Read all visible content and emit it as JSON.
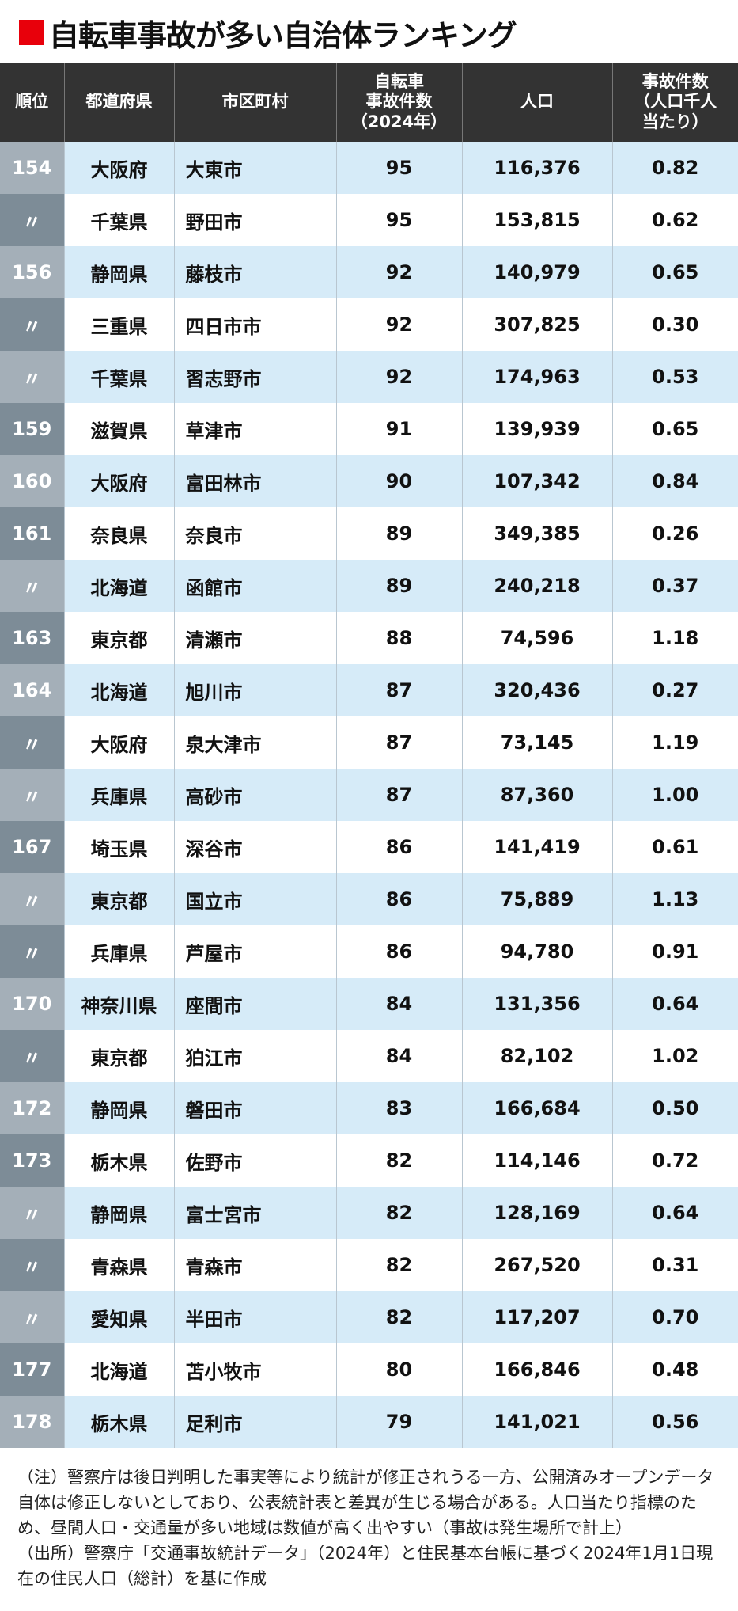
{
  "title": "自転車事故が多い自治体ランキング",
  "colors": {
    "accent": "#e8000b",
    "header": "#333333",
    "row_alt": "#d6ebf8"
  },
  "headers": [
    "順位",
    "都道府県",
    "市区町村",
    "自転車\n事故件数\n（2024年）",
    "人口",
    "事故件数\n（人口千人\n当たり）"
  ],
  "rows": [
    [
      "154",
      "大阪府",
      "大東市",
      "95",
      "116,376",
      "0.82"
    ],
    [
      "〃",
      "千葉県",
      "野田市",
      "95",
      "153,815",
      "0.62"
    ],
    [
      "156",
      "静岡県",
      "藤枝市",
      "92",
      "140,979",
      "0.65"
    ],
    [
      "〃",
      "三重県",
      "四日市市",
      "92",
      "307,825",
      "0.30"
    ],
    [
      "〃",
      "千葉県",
      "習志野市",
      "92",
      "174,963",
      "0.53"
    ],
    [
      "159",
      "滋賀県",
      "草津市",
      "91",
      "139,939",
      "0.65"
    ],
    [
      "160",
      "大阪府",
      "富田林市",
      "90",
      "107,342",
      "0.84"
    ],
    [
      "161",
      "奈良県",
      "奈良市",
      "89",
      "349,385",
      "0.26"
    ],
    [
      "〃",
      "北海道",
      "函館市",
      "89",
      "240,218",
      "0.37"
    ],
    [
      "163",
      "東京都",
      "清瀬市",
      "88",
      "74,596",
      "1.18"
    ],
    [
      "164",
      "北海道",
      "旭川市",
      "87",
      "320,436",
      "0.27"
    ],
    [
      "〃",
      "大阪府",
      "泉大津市",
      "87",
      "73,145",
      "1.19"
    ],
    [
      "〃",
      "兵庫県",
      "高砂市",
      "87",
      "87,360",
      "1.00"
    ],
    [
      "167",
      "埼玉県",
      "深谷市",
      "86",
      "141,419",
      "0.61"
    ],
    [
      "〃",
      "東京都",
      "国立市",
      "86",
      "75,889",
      "1.13"
    ],
    [
      "〃",
      "兵庫県",
      "芦屋市",
      "86",
      "94,780",
      "0.91"
    ],
    [
      "170",
      "神奈川県",
      "座間市",
      "84",
      "131,356",
      "0.64"
    ],
    [
      "〃",
      "東京都",
      "狛江市",
      "84",
      "82,102",
      "1.02"
    ],
    [
      "172",
      "静岡県",
      "磐田市",
      "83",
      "166,684",
      "0.50"
    ],
    [
      "173",
      "栃木県",
      "佐野市",
      "82",
      "114,146",
      "0.72"
    ],
    [
      "〃",
      "静岡県",
      "富士宮市",
      "82",
      "128,169",
      "0.64"
    ],
    [
      "〃",
      "青森県",
      "青森市",
      "82",
      "267,520",
      "0.31"
    ],
    [
      "〃",
      "愛知県",
      "半田市",
      "82",
      "117,207",
      "0.70"
    ],
    [
      "177",
      "北海道",
      "苫小牧市",
      "80",
      "166,846",
      "0.48"
    ],
    [
      "178",
      "栃木県",
      "足利市",
      "79",
      "141,021",
      "0.56"
    ]
  ],
  "notes": [
    "（注）警察庁は後日判明した事実等により統計が修正されうる一方、公開済みオープンデータ自体は修正しないとしており、公表統計表と差異が生じる場合がある。人口当たり指標のため、昼間人口・交通量が多い地域は数値が高く出やすい（事故は発生場所で計上）",
    "（出所）警察庁「交通事故統計データ」（2024年）と住民基本台帳に基づく2024年1月1日現在の住民人口（総計）を基に作成"
  ]
}
